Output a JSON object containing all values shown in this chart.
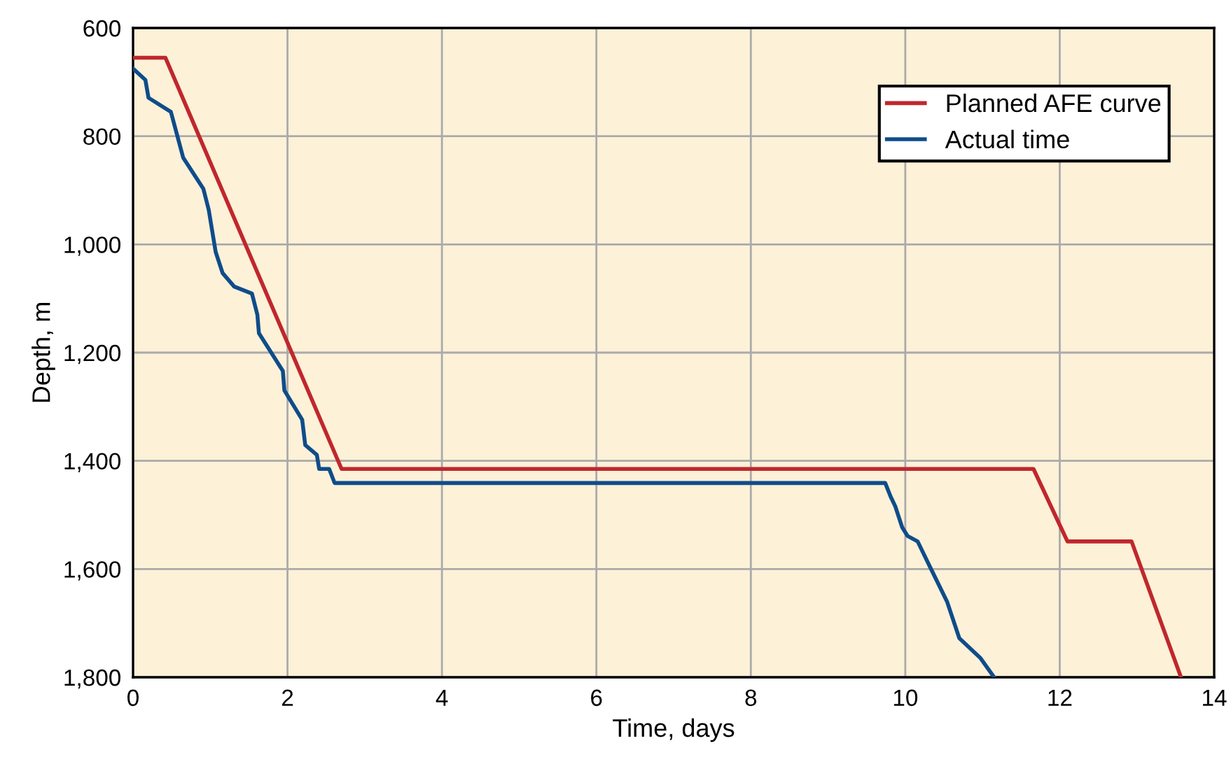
{
  "chart_data": {
    "type": "line",
    "xlabel": "Time, days",
    "ylabel": "Depth, m",
    "xlim": [
      0,
      14
    ],
    "xticks": [
      0,
      2,
      4,
      6,
      8,
      10,
      12,
      14
    ],
    "ylim": [
      1800,
      600
    ],
    "yticks": [
      600,
      800,
      {
        "value": 1000,
        "label": "1,000"
      },
      {
        "value": 1200,
        "label": "1,200"
      },
      {
        "value": 1400,
        "label": "1,400"
      },
      {
        "value": 1600,
        "label": "1,600"
      },
      {
        "value": 1800,
        "label": "1,800"
      }
    ],
    "grid": true,
    "legend": "top right",
    "line_style": "solid",
    "marker": "none",
    "series": [
      {
        "name": "Planned AFE curve",
        "color": "#c0272d",
        "x": [
          0,
          0.42,
          2.7,
          11.66,
          12.1,
          12.93,
          13.57
        ],
        "values": [
          655,
          655,
          1415,
          1415,
          1549,
          1549,
          1800
        ]
      },
      {
        "name": "Actual time",
        "color": "#0f4c8a",
        "x": [
          0,
          0.16,
          0.2,
          0.49,
          0.65,
          0.91,
          0.98,
          1.07,
          1.16,
          1.31,
          1.54,
          1.61,
          1.63,
          1.94,
          1.96,
          2.19,
          2.23,
          2.38,
          2.41,
          2.54,
          2.61,
          9.74,
          9.81,
          9.87,
          9.96,
          10.03,
          10.16,
          10.32,
          10.54,
          10.7,
          10.97,
          11.15
        ],
        "values": [
          675,
          696,
          729,
          755,
          840,
          897,
          936,
          1014,
          1053,
          1078,
          1091,
          1130,
          1164,
          1234,
          1270,
          1324,
          1371,
          1389,
          1415,
          1415,
          1441,
          1441,
          1466,
          1484,
          1523,
          1539,
          1549,
          1596,
          1660,
          1728,
          1764,
          1800
        ]
      }
    ]
  }
}
